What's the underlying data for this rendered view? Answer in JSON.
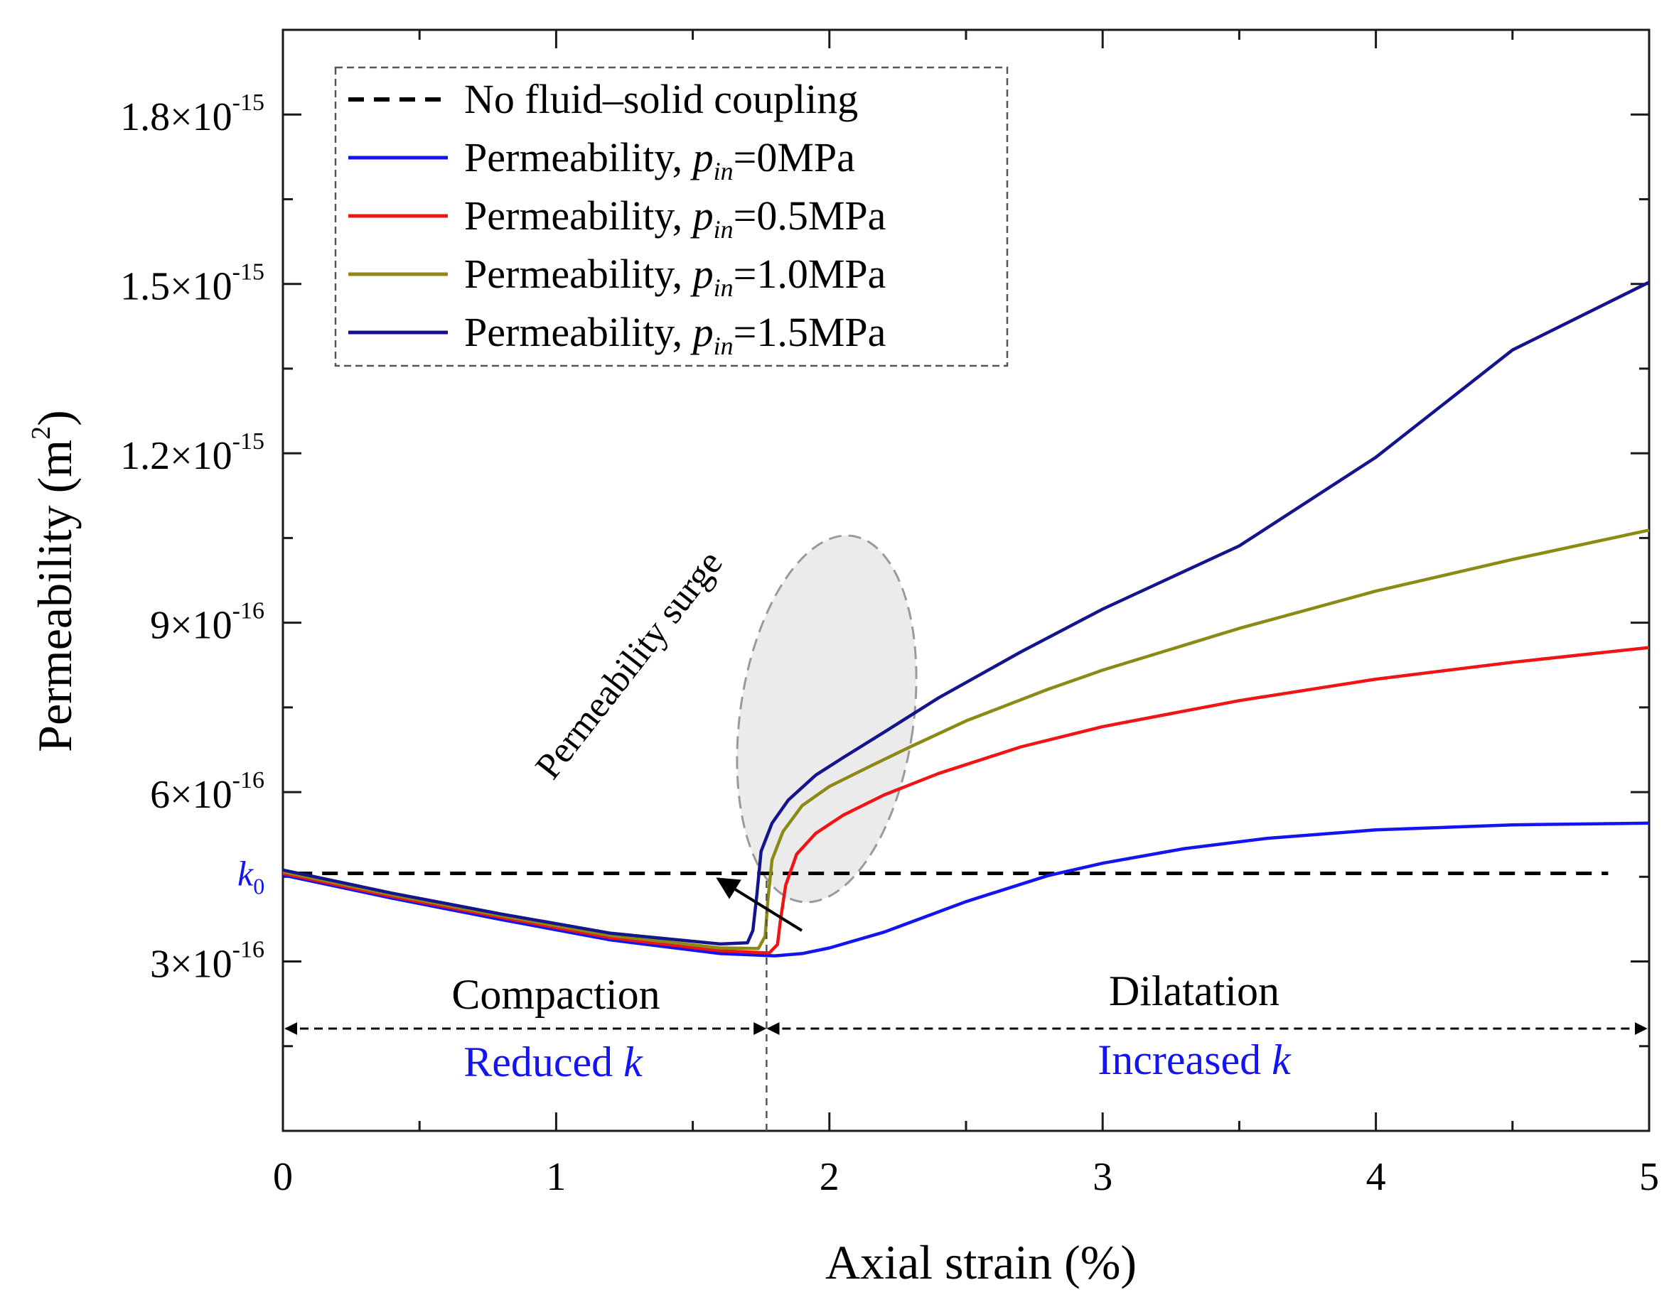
{
  "chart_data": {
    "type": "line",
    "xlabel": "Axial strain (%)",
    "ylabel": "Permeability (m",
    "ylabel_sup": "2",
    "ylabel_close": ")",
    "xlim": [
      0,
      5
    ],
    "ylim": [
      0.0,
      1.95e-15
    ],
    "x_ticks": [
      {
        "value": 0,
        "label": "0"
      },
      {
        "value": 1,
        "label": "1"
      },
      {
        "value": 2,
        "label": "2"
      },
      {
        "value": 3,
        "label": "3"
      },
      {
        "value": 4,
        "label": "4"
      },
      {
        "value": 5,
        "label": "5"
      }
    ],
    "y_ticks": [
      {
        "value": 3e-16,
        "mant": "3×10",
        "exp": "-16"
      },
      {
        "value": 6e-16,
        "mant": "6×10",
        "exp": "-16"
      },
      {
        "value": 9e-16,
        "mant": "9×10",
        "exp": "-16"
      },
      {
        "value": 1.2e-15,
        "mant": "1.2×10",
        "exp": "-15"
      },
      {
        "value": 1.5e-15,
        "mant": "1.5×10",
        "exp": "-15"
      },
      {
        "value": 1.8e-15,
        "mant": "1.8×10",
        "exp": "-15"
      }
    ],
    "series": [
      {
        "name": "No fluid–solid coupling",
        "color": "#000000",
        "dashed": true,
        "x": [
          0,
          5
        ],
        "y": [
          4.56e-16,
          4.56e-16
        ]
      },
      {
        "name": "Permeability, p_in=0MPa",
        "color": "#1414f0",
        "dashed": false,
        "x": [
          0,
          0.4,
          0.8,
          1.2,
          1.6,
          1.8,
          1.9,
          2.0,
          2.2,
          2.5,
          2.8,
          3.0,
          3.3,
          3.6,
          4.0,
          4.5,
          5.0
        ],
        "y": [
          4.53e-16,
          4.12e-16,
          3.74e-16,
          3.38e-16,
          3.14e-16,
          3.1e-16,
          3.14e-16,
          3.24e-16,
          3.52e-16,
          4.06e-16,
          4.52e-16,
          4.74e-16,
          5e-16,
          5.18e-16,
          5.33e-16,
          5.42e-16,
          5.45e-16
        ]
      },
      {
        "name": "Permeability, p_in=0.5MPa",
        "color": "#f01414",
        "dashed": false,
        "x": [
          0,
          0.4,
          0.8,
          1.2,
          1.6,
          1.78,
          1.81,
          1.82,
          1.84,
          1.88,
          1.95,
          2.05,
          2.2,
          2.4,
          2.7,
          3.0,
          3.5,
          4.0,
          4.5,
          5.0
        ],
        "y": [
          4.56e-16,
          4.15e-16,
          3.78e-16,
          3.42e-16,
          3.19e-16,
          3.15e-16,
          3.3e-16,
          3.7e-16,
          4.35e-16,
          4.9e-16,
          5.27e-16,
          5.59e-16,
          5.95e-16,
          6.33e-16,
          6.8e-16,
          7.16e-16,
          7.62e-16,
          8e-16,
          8.3e-16,
          8.56e-16
        ]
      },
      {
        "name": "Permeability, p_in=1.0MPa",
        "color": "#8c8a14",
        "dashed": false,
        "x": [
          0,
          0.4,
          0.8,
          1.2,
          1.6,
          1.74,
          1.765,
          1.775,
          1.79,
          1.83,
          1.9,
          2.0,
          2.15,
          2.3,
          2.5,
          2.8,
          3.0,
          3.5,
          4.0,
          4.5,
          5.0
        ],
        "y": [
          4.59e-16,
          4.18e-16,
          3.81e-16,
          3.46e-16,
          3.24e-16,
          3.23e-16,
          3.45e-16,
          4.1e-16,
          4.8e-16,
          5.3e-16,
          5.76e-16,
          6.1e-16,
          6.46e-16,
          6.81e-16,
          7.26e-16,
          7.82e-16,
          8.16e-16,
          8.9e-16,
          9.56e-16,
          1.012e-15,
          1.064e-15
        ]
      },
      {
        "name": "Permeability, p_in=1.5MPa",
        "color": "#14148c",
        "dashed": false,
        "x": [
          0,
          0.4,
          0.8,
          1.2,
          1.6,
          1.7,
          1.72,
          1.735,
          1.75,
          1.79,
          1.85,
          1.95,
          2.05,
          2.2,
          2.4,
          2.7,
          3.0,
          3.5,
          4.0,
          4.5,
          5.0
        ],
        "y": [
          4.62e-16,
          4.21e-16,
          3.84e-16,
          3.5e-16,
          3.31e-16,
          3.33e-16,
          3.55e-16,
          4.2e-16,
          4.95e-16,
          5.45e-16,
          5.86e-16,
          6.3e-16,
          6.61e-16,
          7.06e-16,
          7.67e-16,
          8.48e-16,
          9.24e-16,
          1.036e-15,
          1.193e-15,
          1.383e-15,
          1.503e-15
        ]
      }
    ],
    "legend": {
      "position": "top-left",
      "entries": [
        {
          "text": "No fluid–solid coupling"
        },
        {
          "text": "Permeability, ",
          "sub_p": "p",
          "sub_in": "in",
          "suffix": "=0MPa"
        },
        {
          "text": "Permeability, ",
          "sub_p": "p",
          "sub_in": "in",
          "suffix": "=0.5MPa"
        },
        {
          "text": "Permeability, ",
          "sub_p": "p",
          "sub_in": "in",
          "suffix": "=1.0MPa"
        },
        {
          "text": "Permeability, ",
          "sub_p": "p",
          "sub_in": "in",
          "suffix": "=1.5MPa"
        }
      ]
    },
    "annotations": {
      "k0_label": "k",
      "k0_sub": "0",
      "k0_value": 4.56e-16,
      "surge_label": "Permeability surge",
      "transition_x": 1.77,
      "compaction_label": "Compaction",
      "reduced_label": "Reduced ",
      "reduced_k": "k",
      "dilatation_label": "Dilatation",
      "increased_label": "Increased ",
      "increased_k": "k"
    },
    "colors": {
      "axis": "#1a1a1a",
      "annotation_blue": "#1414f0",
      "ellipse_fill": "#ebebeb",
      "ellipse_stroke": "#9a9a9a"
    }
  }
}
